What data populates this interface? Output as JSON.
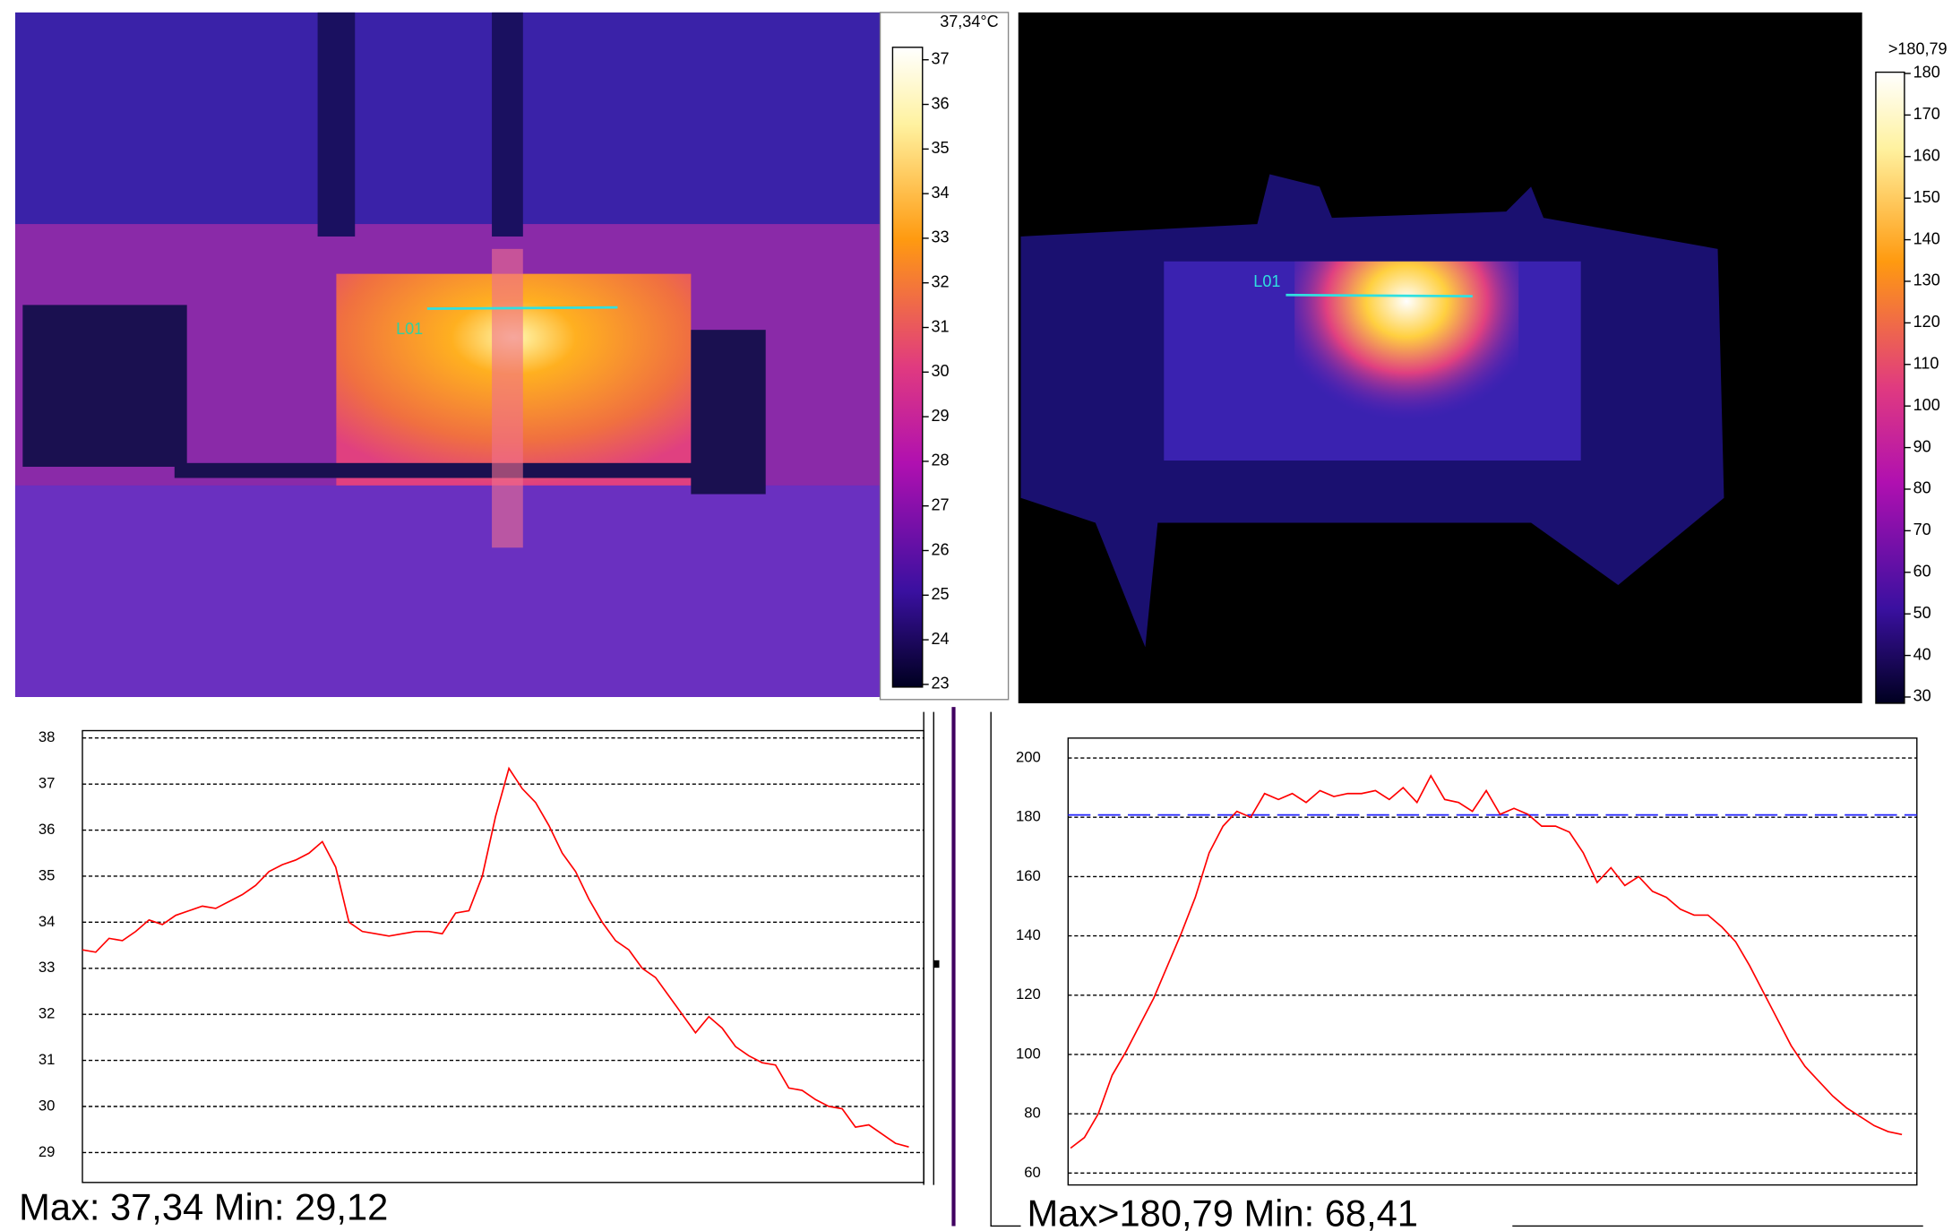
{
  "chart_data": [
    {
      "type": "line",
      "color": "#ff0000",
      "ylim": [
        28.35,
        38.16
      ],
      "yticks": [
        29,
        30,
        31,
        32,
        33,
        34,
        35,
        36,
        37,
        38
      ],
      "grid": true,
      "caption": "Max: 37,34 Min: 29,12",
      "values": [
        33.4,
        33.35,
        33.65,
        33.6,
        33.8,
        34.05,
        33.95,
        34.15,
        34.25,
        34.35,
        34.3,
        34.45,
        34.6,
        34.8,
        35.1,
        35.25,
        35.35,
        35.5,
        35.75,
        35.2,
        34.0,
        33.8,
        33.75,
        33.7,
        33.75,
        33.8,
        33.8,
        33.75,
        34.2,
        34.25,
        35.0,
        36.3,
        37.34,
        36.9,
        36.6,
        36.1,
        35.5,
        35.1,
        34.5,
        34.0,
        33.6,
        33.4,
        33.0,
        32.8,
        32.4,
        32.0,
        31.6,
        31.95,
        31.7,
        31.3,
        31.1,
        30.95,
        30.9,
        30.4,
        30.35,
        30.15,
        30.0,
        29.95,
        29.55,
        29.6,
        29.4,
        29.2,
        29.12
      ]
    },
    {
      "type": "line",
      "color": "#ff0000",
      "ylim": [
        56,
        206.7
      ],
      "yticks": [
        60,
        80,
        100,
        120,
        140,
        160,
        180,
        200
      ],
      "grid": true,
      "caption": "Max>180,79 Min: 68,41",
      "threshold": 180.79,
      "threshold_color": "#2020ff",
      "values": [
        68.41,
        72,
        80,
        93,
        101,
        110,
        119,
        130,
        141,
        153,
        168,
        177,
        182,
        180,
        188,
        186,
        188,
        185,
        189,
        187,
        188,
        188,
        189,
        186,
        190,
        185,
        194,
        186,
        185,
        182,
        189,
        181,
        183,
        181,
        177,
        177,
        175,
        168,
        158,
        163,
        157,
        160,
        155,
        153,
        149,
        147,
        147,
        143,
        138,
        130,
        121,
        112,
        103,
        96,
        91,
        86,
        82,
        79,
        76,
        74,
        73
      ]
    }
  ],
  "thermal_images": [
    {
      "scale_label": "37,34°C",
      "scale_lim": [
        22.94,
        37.28
      ],
      "scale_ticks": [
        23,
        24,
        25,
        26,
        27,
        28,
        29,
        30,
        31,
        32,
        33,
        34,
        35,
        36,
        37
      ],
      "marker": "L01"
    },
    {
      "scale_label": ">180,79",
      "scale_lim": [
        28.5,
        180.3
      ],
      "scale_ticks": [
        30,
        40,
        50,
        60,
        70,
        80,
        90,
        100,
        110,
        120,
        130,
        140,
        150,
        160,
        170,
        180
      ],
      "marker": "L01"
    }
  ]
}
